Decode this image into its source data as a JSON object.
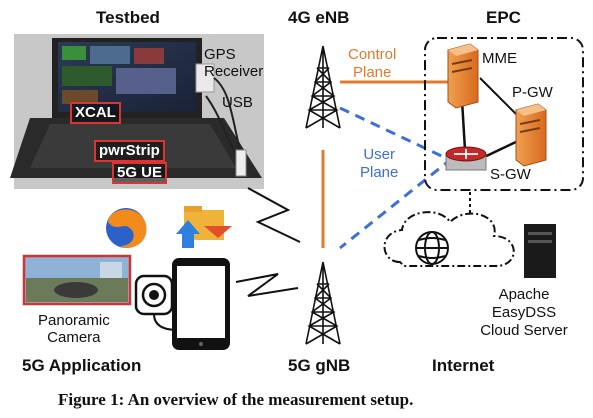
{
  "sections": {
    "testbed": "Testbed",
    "enb": "4G eNB",
    "epc": "EPC",
    "app": "5G Application",
    "gnb": "5G gNB",
    "internet": "Internet"
  },
  "labels": {
    "gps": [
      "GPS",
      "Receiver"
    ],
    "usb": "USB",
    "xcal": "XCAL",
    "pwrstrip": "pwrStrip",
    "ue": "5G UE",
    "control_plane": [
      "Control",
      "Plane"
    ],
    "user_plane": [
      "User",
      "Plane"
    ],
    "mme": "MME",
    "pgw": "P-GW",
    "sgw": "S-GW",
    "camera": [
      "Panoramic",
      "Camera"
    ],
    "server": [
      "Apache",
      "EasyDSS",
      "Cloud Server"
    ]
  },
  "caption": "Figure 1: An overview of the measurement setup.",
  "colors": {
    "control_plane": "#e07b2e",
    "user_plane": "#3d6fd6",
    "red_box": "#d33333"
  },
  "icons": [
    "laptop-photo",
    "firefox-icon",
    "file-transfer-icon",
    "panorama-photo",
    "camera-360-icon",
    "smartphone-icon",
    "tower-icon",
    "server-icon",
    "router-icon",
    "cloud-icon",
    "globe-icon",
    "lightning-icon"
  ]
}
